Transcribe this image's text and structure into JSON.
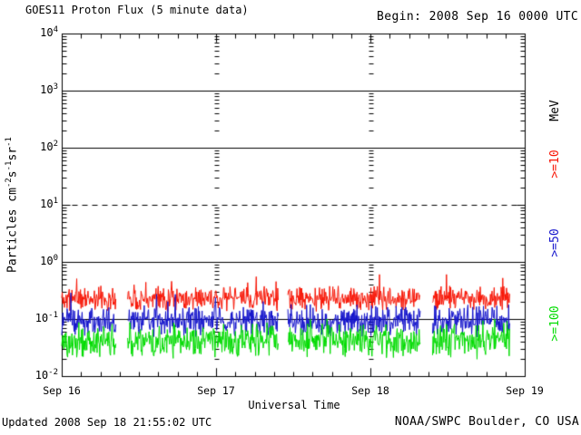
{
  "header": {
    "begin_label": "Begin: 2008 Sep 16 0000 UTC"
  },
  "footer": {
    "updated": "Updated 2008 Sep 18 21:55:02 UTC",
    "credit": "NOAA/SWPC Boulder, CO USA"
  },
  "chart_data": {
    "type": "line",
    "title": "GOES11 Proton Flux (5 minute data)",
    "xlabel": "Universal Time",
    "ylabel_parts": [
      {
        "text": "Particles  cm"
      },
      {
        "sup": "-2"
      },
      {
        "text": "s"
      },
      {
        "sup": "-1"
      },
      {
        "text": "sr"
      },
      {
        "sup": "-1"
      }
    ],
    "right_axis_unit": "MeV",
    "x_tick_labels": [
      "Sep 16",
      "Sep 17",
      "Sep 18",
      "Sep 19"
    ],
    "x_range_days": [
      0,
      3
    ],
    "minor_tick_hours": 3,
    "y_tick_exponents": [
      4,
      3,
      2,
      1,
      0,
      -1,
      -2
    ],
    "y_log_range": [
      -2,
      4
    ],
    "solid_hline_exponents": [
      3,
      2,
      0,
      -1
    ],
    "dashed_hline_exponents": [
      1
    ],
    "day_gridlines_days": [
      1,
      2
    ],
    "sample_interval_minutes": 5,
    "data_end_day": 2.905,
    "data_gaps_days": [
      [
        0.353,
        0.424
      ],
      [
        1.406,
        1.465
      ],
      [
        2.324,
        2.4
      ]
    ],
    "axis_color": "#000000",
    "series": [
      {
        "label": ">=10",
        "name": ">=10 MeV",
        "color": "#f81505",
        "log10_median": -0.64,
        "log10_spread": 0.24,
        "log10_min": -0.97,
        "log10_max": -0.22,
        "spike_probability": 0.02,
        "spike_log10_boost": 0.3,
        "approx_flux_range": [
          0.12,
          0.55
        ]
      },
      {
        "label": ">=50",
        "name": ">=50 MeV",
        "color": "#1414cc",
        "log10_median": -1.03,
        "log10_spread": 0.3,
        "log10_min": -1.38,
        "log10_max": -0.5,
        "spike_probability": 0.012,
        "spike_log10_boost": 0.28,
        "approx_flux_range": [
          0.045,
          0.3
        ]
      },
      {
        "label": ">=100",
        "name": ">=100 MeV",
        "color": "#00dc00",
        "log10_median": -1.38,
        "log10_spread": 0.34,
        "log10_min": -1.8,
        "log10_max": -1.0,
        "spike_probability": 0.01,
        "spike_log10_boost": 0.25,
        "approx_flux_range": [
          0.016,
          0.1
        ]
      }
    ]
  }
}
